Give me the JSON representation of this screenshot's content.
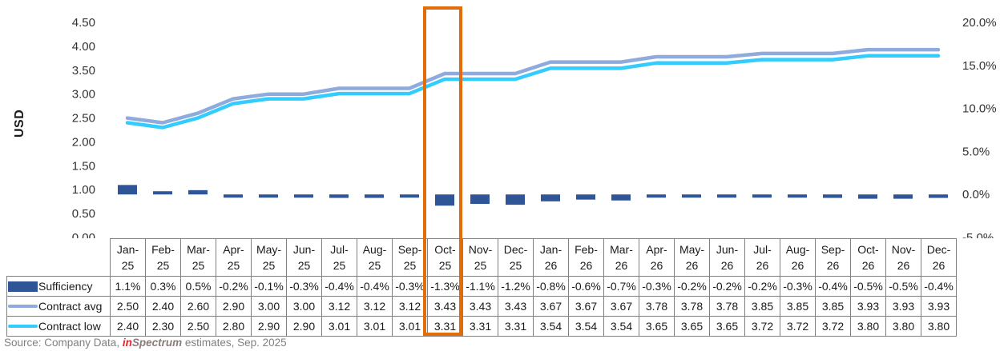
{
  "chart_data": {
    "type": "combo",
    "title": "",
    "grid": false,
    "legend_position": "table-left",
    "categories": [
      "Jan-25",
      "Feb-25",
      "Mar-25",
      "Apr-25",
      "May-25",
      "Jun-25",
      "Jul-25",
      "Aug-25",
      "Sep-25",
      "Oct-25",
      "Nov-25",
      "Dec-25",
      "Jan-26",
      "Feb-26",
      "Mar-26",
      "Apr-26",
      "May-26",
      "Jun-26",
      "Jul-26",
      "Aug-26",
      "Sep-26",
      "Oct-26",
      "Nov-26",
      "Dec-26"
    ],
    "series": [
      {
        "name": "Sufficiency",
        "type": "bar",
        "axis": "right",
        "format": "pct1",
        "color": "#2F5597",
        "values": [
          1.1,
          0.3,
          0.5,
          -0.2,
          -0.1,
          -0.3,
          -0.4,
          -0.4,
          -0.3,
          -1.3,
          -1.1,
          -1.2,
          -0.8,
          -0.6,
          -0.7,
          -0.3,
          -0.2,
          -0.2,
          -0.2,
          -0.3,
          -0.4,
          -0.5,
          -0.5,
          -0.4
        ]
      },
      {
        "name": "Contract avg",
        "type": "line",
        "axis": "left",
        "format": "fix2",
        "color": "#8FAADC",
        "values": [
          2.5,
          2.4,
          2.6,
          2.9,
          3.0,
          3.0,
          3.12,
          3.12,
          3.12,
          3.43,
          3.43,
          3.43,
          3.67,
          3.67,
          3.67,
          3.78,
          3.78,
          3.78,
          3.85,
          3.85,
          3.85,
          3.93,
          3.93,
          3.93
        ]
      },
      {
        "name": "Contract low",
        "type": "line",
        "axis": "left",
        "format": "fix2",
        "color": "#33CCFF",
        "values": [
          2.4,
          2.3,
          2.5,
          2.8,
          2.9,
          2.9,
          3.01,
          3.01,
          3.01,
          3.31,
          3.31,
          3.31,
          3.54,
          3.54,
          3.54,
          3.65,
          3.65,
          3.65,
          3.72,
          3.72,
          3.72,
          3.8,
          3.8,
          3.8
        ]
      }
    ],
    "left_axis": {
      "label": "USD",
      "min": 0,
      "max": 4.5,
      "tick_values": [
        0,
        0.5,
        1.0,
        1.5,
        2.0,
        2.5,
        3.0,
        3.5,
        4.0,
        4.5
      ],
      "tick_labels": [
        "0.00",
        "0.50",
        "1.00",
        "1.50",
        "2.00",
        "2.50",
        "3.00",
        "3.50",
        "4.00",
        "4.50"
      ]
    },
    "right_axis": {
      "min": -5,
      "max": 20,
      "tick_values": [
        -5,
        0,
        5,
        10,
        15,
        20
      ],
      "tick_labels": [
        "-5.0%",
        "0.0%",
        "5.0%",
        "10.0%",
        "15.0%",
        "20.0%"
      ]
    },
    "highlight": {
      "category": "Oct-25",
      "color": "#E36C0A"
    }
  },
  "source": {
    "prefix": "Source: Company Data, ",
    "brand_in": "in",
    "brand_rest": "Spectrum",
    "suffix": " estimates, Sep. 2025"
  }
}
